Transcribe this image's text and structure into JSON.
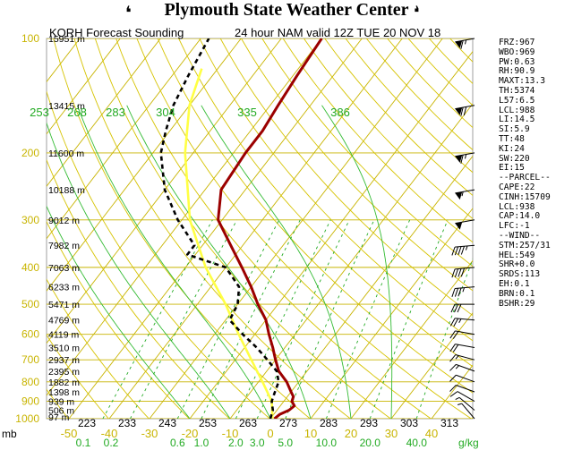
{
  "header": {
    "title": "Plymouth State Weather Center",
    "flag_glyph": "❛"
  },
  "subtitle": {
    "station": "KORH Forecast Sounding",
    "valid": "24 hour NAM valid 12Z TUE 20 NOV 18"
  },
  "colors": {
    "isotherm": "#c8b400",
    "mixing": "#22aa22",
    "dry_adiabat": "#d6c300",
    "moist_adiabat": "#33bb33",
    "temperature": "#9b0000",
    "dewpoint": "#000000",
    "wetbulb": "#ffff44",
    "pressure_label": "#c8b400",
    "theta_label": "#22aa22",
    "text": "#000000"
  },
  "chart_data": {
    "type": "skew-t log-p",
    "pressure_range": [
      1000,
      100
    ],
    "pressure_levels": [
      100,
      200,
      300,
      400,
      500,
      600,
      700,
      800,
      900,
      1000
    ],
    "pressure_labels": [
      "100",
      "200",
      "300",
      "400",
      "500",
      "600",
      "700",
      "800",
      "900",
      "1000"
    ],
    "heights": [
      {
        "p": 100,
        "label": "15951 m"
      },
      {
        "p": 150,
        "label": "13415 m"
      },
      {
        "p": 200,
        "label": "11600 m"
      },
      {
        "p": 250,
        "label": "10188 m"
      },
      {
        "p": 300,
        "label": "9012 m"
      },
      {
        "p": 350,
        "label": "7982 m"
      },
      {
        "p": 400,
        "label": "7063 m"
      },
      {
        "p": 450,
        "label": "6233 m"
      },
      {
        "p": 500,
        "label": "5471 m"
      },
      {
        "p": 550,
        "label": "4769 m"
      },
      {
        "p": 600,
        "label": "4119 m"
      },
      {
        "p": 650,
        "label": "3510 m"
      },
      {
        "p": 700,
        "label": "2937 m"
      },
      {
        "p": 750,
        "label": "2395 m"
      },
      {
        "p": 800,
        "label": "1882 m"
      },
      {
        "p": 850,
        "label": "1398 m"
      },
      {
        "p": 900,
        "label": "939 m"
      },
      {
        "p": 950,
        "label": "506 m"
      },
      {
        "p": 1000,
        "label": "97 m"
      }
    ],
    "isotherms": [
      -50,
      -40,
      -30,
      -20,
      -10,
      0,
      10,
      20,
      30,
      40
    ],
    "temp_labels": [
      {
        "t": -50,
        "label": "-50"
      },
      {
        "t": -40,
        "label": "-40"
      },
      {
        "t": -30,
        "label": "-30"
      },
      {
        "t": -20,
        "label": "-20"
      },
      {
        "t": -10,
        "label": "-10"
      },
      {
        "t": 0,
        "label": "0"
      },
      {
        "t": 10,
        "label": "10"
      },
      {
        "t": 20,
        "label": "20"
      },
      {
        "t": 30,
        "label": "30"
      },
      {
        "t": 40,
        "label": "40"
      }
    ],
    "potential_temp_bottom": [
      "223",
      "233",
      "243",
      "253",
      "263",
      "273",
      "283",
      "293",
      "303",
      "313"
    ],
    "theta_e_top": [
      "253",
      "268",
      "283",
      "304",
      "335",
      "386"
    ],
    "mixing_ratios": [
      0.1,
      0.2,
      0.6,
      1.0,
      2.0,
      3.0,
      5.0,
      10.0,
      20.0,
      40.0
    ],
    "mixing_ratio_labels": [
      "0.1",
      "0.2",
      "0.6",
      "1.0",
      "2.0",
      "3.0",
      "5.0",
      "10.0",
      "20.0",
      "40.0"
    ],
    "mb_label": "mb",
    "mixing_unit": "g/kg",
    "temperature_profile": [
      {
        "p": 1000,
        "t": 1.0
      },
      {
        "p": 975,
        "t": 1.5
      },
      {
        "p": 950,
        "t": 3.0
      },
      {
        "p": 925,
        "t": 3.5
      },
      {
        "p": 900,
        "t": 2.0
      },
      {
        "p": 875,
        "t": 1.5
      },
      {
        "p": 850,
        "t": 0.0
      },
      {
        "p": 800,
        "t": -3.0
      },
      {
        "p": 750,
        "t": -7.0
      },
      {
        "p": 700,
        "t": -10.0
      },
      {
        "p": 650,
        "t": -13.0
      },
      {
        "p": 600,
        "t": -16.5
      },
      {
        "p": 550,
        "t": -20.0
      },
      {
        "p": 500,
        "t": -25.0
      },
      {
        "p": 450,
        "t": -30.0
      },
      {
        "p": 400,
        "t": -36.0
      },
      {
        "p": 350,
        "t": -43.0
      },
      {
        "p": 300,
        "t": -51.0
      },
      {
        "p": 250,
        "t": -56.0
      },
      {
        "p": 200,
        "t": -57.0
      },
      {
        "p": 175,
        "t": -57.0
      },
      {
        "p": 150,
        "t": -58.0
      },
      {
        "p": 125,
        "t": -59.0
      },
      {
        "p": 100,
        "t": -60.0
      }
    ],
    "dewpoint_profile": [
      {
        "p": 1000,
        "t": 0.0
      },
      {
        "p": 975,
        "t": -0.5
      },
      {
        "p": 950,
        "t": -1.0
      },
      {
        "p": 925,
        "t": -2.0
      },
      {
        "p": 900,
        "t": -3.0
      },
      {
        "p": 875,
        "t": -3.5
      },
      {
        "p": 850,
        "t": -4.0
      },
      {
        "p": 800,
        "t": -5.0
      },
      {
        "p": 750,
        "t": -7.5
      },
      {
        "p": 700,
        "t": -12.0
      },
      {
        "p": 650,
        "t": -17.0
      },
      {
        "p": 600,
        "t": -23.0
      },
      {
        "p": 550,
        "t": -29.0
      },
      {
        "p": 500,
        "t": -30.0
      },
      {
        "p": 450,
        "t": -33.0
      },
      {
        "p": 400,
        "t": -40.0
      },
      {
        "p": 370,
        "t": -52.0
      },
      {
        "p": 350,
        "t": -52.0
      },
      {
        "p": 300,
        "t": -61.0
      },
      {
        "p": 250,
        "t": -70.0
      },
      {
        "p": 200,
        "t": -78.0
      },
      {
        "p": 175,
        "t": -81.0
      },
      {
        "p": 150,
        "t": -84.0
      },
      {
        "p": 125,
        "t": -86.0
      },
      {
        "p": 100,
        "t": -88.0
      }
    ],
    "wetbulb_profile": [
      {
        "p": 1000,
        "t": 0.5
      },
      {
        "p": 900,
        "t": -3.0
      },
      {
        "p": 800,
        "t": -9.0
      },
      {
        "p": 700,
        "t": -16.0
      },
      {
        "p": 600,
        "t": -24.0
      },
      {
        "p": 500,
        "t": -33.0
      },
      {
        "p": 400,
        "t": -45.0
      },
      {
        "p": 300,
        "t": -58.0
      },
      {
        "p": 200,
        "t": -72.0
      },
      {
        "p": 150,
        "t": -80.0
      },
      {
        "p": 120,
        "t": -84.0
      }
    ],
    "wind_barbs": [
      {
        "p": 100,
        "dir": 260,
        "spd": 65
      },
      {
        "p": 150,
        "dir": 260,
        "spd": 70
      },
      {
        "p": 200,
        "dir": 260,
        "spd": 65
      },
      {
        "p": 250,
        "dir": 260,
        "spd": 55
      },
      {
        "p": 300,
        "dir": 260,
        "spd": 50
      },
      {
        "p": 350,
        "dir": 265,
        "spd": 45
      },
      {
        "p": 400,
        "dir": 265,
        "spd": 40
      },
      {
        "p": 450,
        "dir": 265,
        "spd": 35
      },
      {
        "p": 500,
        "dir": 270,
        "spd": 30
      },
      {
        "p": 550,
        "dir": 275,
        "spd": 25
      },
      {
        "p": 600,
        "dir": 280,
        "spd": 20
      },
      {
        "p": 650,
        "dir": 280,
        "spd": 20
      },
      {
        "p": 700,
        "dir": 285,
        "spd": 15
      },
      {
        "p": 750,
        "dir": 290,
        "spd": 15
      },
      {
        "p": 800,
        "dir": 290,
        "spd": 10
      },
      {
        "p": 850,
        "dir": 290,
        "spd": 10
      },
      {
        "p": 900,
        "dir": 300,
        "spd": 10
      },
      {
        "p": 950,
        "dir": 310,
        "spd": 5
      },
      {
        "p": 1000,
        "dir": 320,
        "spd": 5
      }
    ]
  },
  "stats": [
    "FRZ:967",
    "WBO:969",
    "PW:0.63",
    "RH:90.9",
    "MAXT:13.3",
    "TH:5374",
    "L57:6.5",
    "LCL:988",
    "LI:14.5",
    "SI:5.9",
    "TT:48",
    "KI:24",
    "SW:220",
    "EI:15",
    "--PARCEL--",
    "CAPE:22",
    "CINH:15709",
    "LCL:938",
    "CAP:14.0",
    "LFC:-1",
    "--WIND--",
    "STM:257/31",
    "HEL:549",
    "SHR+0.0",
    "SRDS:113",
    "EH:0.1",
    "BRN:0.1",
    "BSHR:29"
  ]
}
